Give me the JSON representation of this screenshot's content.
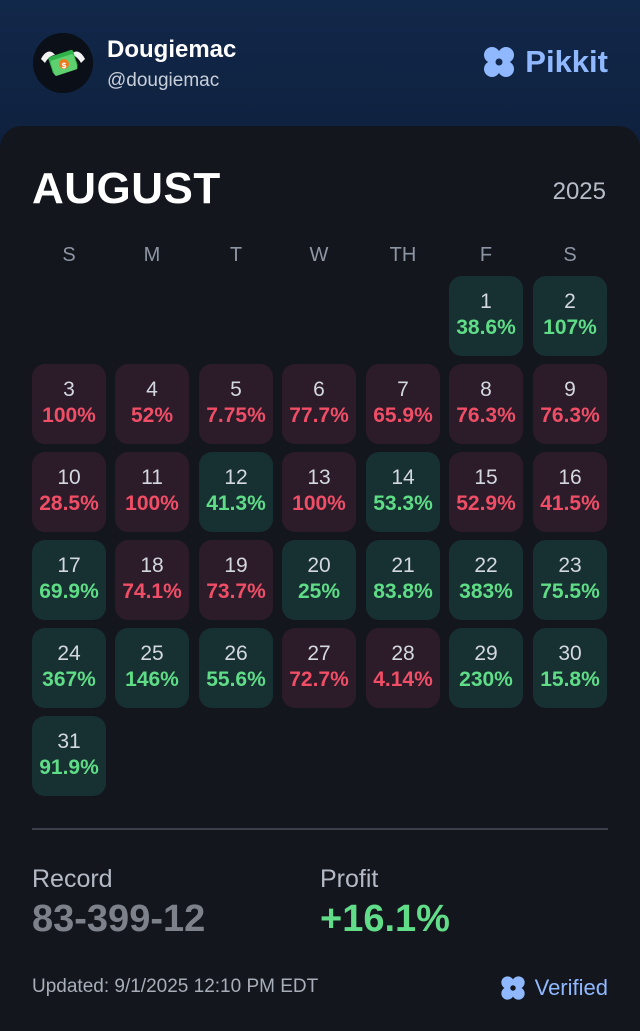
{
  "header": {
    "user_name": "Dougiemac",
    "user_handle": "@dougiemac",
    "brand": "Pikkit"
  },
  "calendar": {
    "month": "AUGUST",
    "year": "2025",
    "weekdays": [
      "S",
      "M",
      "T",
      "W",
      "TH",
      "F",
      "S"
    ],
    "days": [
      {
        "day": "1",
        "pct": "38.6%",
        "result": "win"
      },
      {
        "day": "2",
        "pct": "107%",
        "result": "win"
      },
      {
        "day": "3",
        "pct": "100%",
        "result": "loss"
      },
      {
        "day": "4",
        "pct": "52%",
        "result": "loss"
      },
      {
        "day": "5",
        "pct": "7.75%",
        "result": "loss"
      },
      {
        "day": "6",
        "pct": "77.7%",
        "result": "loss"
      },
      {
        "day": "7",
        "pct": "65.9%",
        "result": "loss"
      },
      {
        "day": "8",
        "pct": "76.3%",
        "result": "loss"
      },
      {
        "day": "9",
        "pct": "76.3%",
        "result": "loss"
      },
      {
        "day": "10",
        "pct": "28.5%",
        "result": "loss"
      },
      {
        "day": "11",
        "pct": "100%",
        "result": "loss"
      },
      {
        "day": "12",
        "pct": "41.3%",
        "result": "win"
      },
      {
        "day": "13",
        "pct": "100%",
        "result": "loss"
      },
      {
        "day": "14",
        "pct": "53.3%",
        "result": "win"
      },
      {
        "day": "15",
        "pct": "52.9%",
        "result": "loss"
      },
      {
        "day": "16",
        "pct": "41.5%",
        "result": "loss"
      },
      {
        "day": "17",
        "pct": "69.9%",
        "result": "win"
      },
      {
        "day": "18",
        "pct": "74.1%",
        "result": "loss"
      },
      {
        "day": "19",
        "pct": "73.7%",
        "result": "loss"
      },
      {
        "day": "20",
        "pct": "25%",
        "result": "win"
      },
      {
        "day": "21",
        "pct": "83.8%",
        "result": "win"
      },
      {
        "day": "22",
        "pct": "383%",
        "result": "win"
      },
      {
        "day": "23",
        "pct": "75.5%",
        "result": "win"
      },
      {
        "day": "24",
        "pct": "367%",
        "result": "win"
      },
      {
        "day": "25",
        "pct": "146%",
        "result": "win"
      },
      {
        "day": "26",
        "pct": "55.6%",
        "result": "win"
      },
      {
        "day": "27",
        "pct": "72.7%",
        "result": "loss"
      },
      {
        "day": "28",
        "pct": "4.14%",
        "result": "loss"
      },
      {
        "day": "29",
        "pct": "230%",
        "result": "win"
      },
      {
        "day": "30",
        "pct": "15.8%",
        "result": "win"
      },
      {
        "day": "31",
        "pct": "91.9%",
        "result": "win"
      }
    ]
  },
  "stats": {
    "record_label": "Record",
    "record_value": "83-399-12",
    "profit_label": "Profit",
    "profit_value": "+16.1%"
  },
  "footer": {
    "updated": "Updated: 9/1/2025 12:10 PM EDT",
    "verified": "Verified"
  },
  "icons": {
    "brand_icon": "clover-icon",
    "verified_icon": "clover-icon",
    "avatar": "money-wings-avatar"
  },
  "colors": {
    "win": "#5fdc86",
    "loss": "#f04e66",
    "accent": "#8fb8ff"
  }
}
